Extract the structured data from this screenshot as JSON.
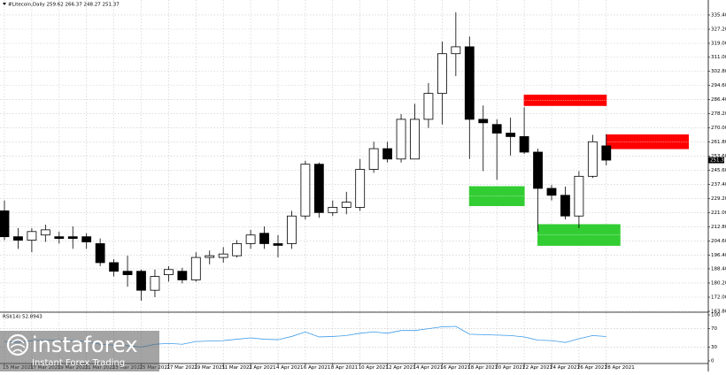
{
  "chart_data": {
    "type": "candlestick",
    "title": "#Litecoin,Daily  259.62 266.37 248.27 251.37",
    "categories": [
      "15 Mar 2021",
      null,
      "17 Mar 2021",
      null,
      "19 Mar 2021",
      null,
      "21 Mar 2021",
      null,
      "23 Mar 2021",
      null,
      "25 Mar 2021",
      null,
      "27 Mar 2021",
      null,
      "29 Mar 2021",
      null,
      "31 Mar 2021",
      null,
      "2 Apr 2021",
      null,
      "4 Apr 2021",
      null,
      "6 Apr 2021",
      null,
      "8 Apr 2021",
      null,
      "10 Apr 2021",
      null,
      "12 Apr 2021",
      null,
      "14 Apr 2021",
      null,
      "16 Apr 2021",
      null,
      "18 Apr 2021",
      null,
      "20 Apr 2021",
      null,
      "22 Apr 2021",
      null,
      "24 Apr 2021",
      null,
      "26 Apr 2021",
      null,
      "28 Apr 2021"
    ],
    "open": [
      222,
      207,
      205,
      208,
      207,
      207,
      207,
      203,
      192,
      187,
      187,
      176,
      185,
      187,
      182,
      195,
      195,
      196,
      203,
      209,
      203,
      203,
      219,
      249,
      221,
      224,
      224,
      246,
      258,
      252,
      252,
      275,
      290,
      313,
      317,
      275,
      272,
      267,
      265,
      256,
      235,
      231,
      219,
      242,
      259.62
    ],
    "high": [
      228,
      212,
      212,
      214,
      210,
      213,
      209,
      206,
      194,
      196,
      188,
      188,
      190,
      189,
      198,
      199,
      201,
      205,
      211,
      213,
      208,
      222,
      251,
      250,
      228,
      233,
      252,
      262,
      262,
      278,
      284,
      296,
      320,
      337,
      323,
      283,
      275,
      276,
      282,
      258,
      237,
      236,
      245,
      266,
      266.37
    ],
    "low": [
      205,
      200,
      198,
      204,
      203,
      200,
      200,
      190,
      184,
      178,
      170,
      172,
      181,
      180,
      181,
      191,
      192,
      195,
      200,
      200,
      195,
      200,
      217,
      218,
      219,
      220,
      222,
      244,
      250,
      250,
      252,
      270,
      272,
      300,
      252,
      245,
      240,
      254,
      255,
      210,
      228,
      217,
      212,
      241,
      248.27
    ],
    "close": [
      207,
      205,
      210,
      211,
      206,
      206,
      204,
      192,
      187,
      185,
      176,
      184,
      188,
      182,
      195,
      196,
      197,
      203,
      208,
      203,
      202,
      219,
      249,
      221,
      224,
      227,
      246,
      258,
      252,
      275,
      275,
      290,
      313,
      317,
      275,
      273,
      267,
      265,
      256,
      235,
      231,
      219,
      242,
      262,
      251.37
    ],
    "up_color": "#ffffff",
    "down_color": "#000000",
    "ylim": [
      163.8,
      340
    ],
    "yticks": [
      {
        "value": 335.4,
        "label": "335.40"
      },
      {
        "value": 327.2,
        "label": "327.20"
      },
      {
        "value": 319,
        "label": "319.00"
      },
      {
        "value": 311,
        "label": "311.00"
      },
      {
        "value": 302.8,
        "label": "302.80"
      },
      {
        "value": 294.6,
        "label": "294.60"
      },
      {
        "value": 286.4,
        "label": "286.40"
      },
      {
        "value": 278.2,
        "label": "278.20"
      },
      {
        "value": 270,
        "label": "270.00"
      },
      {
        "value": 261.8,
        "label": "261.80"
      },
      {
        "value": 253.6,
        "label": "253.60"
      },
      {
        "value": 245.6,
        "label": "245.60"
      },
      {
        "value": 237.4,
        "label": "237.40"
      },
      {
        "value": 229.2,
        "label": "229.20"
      },
      {
        "value": 221,
        "label": "221.00"
      },
      {
        "value": 212.8,
        "label": "212.80"
      },
      {
        "value": 204.6,
        "label": "204.60"
      },
      {
        "value": 196.4,
        "label": "196.40"
      },
      {
        "value": 188.4,
        "label": "188.40"
      },
      {
        "value": 180.2,
        "label": "180.20"
      },
      {
        "value": 172,
        "label": "172.00"
      },
      {
        "value": 163.8,
        "label": "163.80"
      }
    ],
    "grid": true,
    "zones": [
      {
        "color": "#ff0000",
        "top": 289,
        "bottom": 283,
        "from": 38,
        "to": 44
      },
      {
        "color": "#ff0000",
        "top": 266,
        "bottom": 258,
        "from": 44,
        "to": 50
      },
      {
        "color": "#32cd32",
        "top": 236,
        "bottom": 225,
        "from": 34,
        "to": 38
      },
      {
        "color": "#32cd32",
        "top": 214,
        "bottom": 202,
        "from": 39,
        "to": 45
      }
    ],
    "rsi": {
      "label": "RSI(14) 52.8943",
      "color": "#3d9be9",
      "values": [
        42,
        40,
        44,
        45,
        44,
        44,
        42,
        36,
        34,
        33,
        30,
        36,
        38,
        36,
        42,
        43,
        44,
        47,
        50,
        47,
        46,
        53,
        63,
        52,
        53,
        55,
        60,
        63,
        60,
        66,
        66,
        70,
        74,
        75,
        58,
        57,
        56,
        55,
        52,
        45,
        44,
        40,
        48,
        55,
        52.8943
      ],
      "ylim": [
        0,
        100
      ],
      "yticks": [
        100,
        70,
        30,
        0
      ],
      "levels": [
        70,
        30
      ]
    },
    "logo": {
      "name": "instaforex",
      "tagline": "Instant Forex Trading"
    }
  }
}
